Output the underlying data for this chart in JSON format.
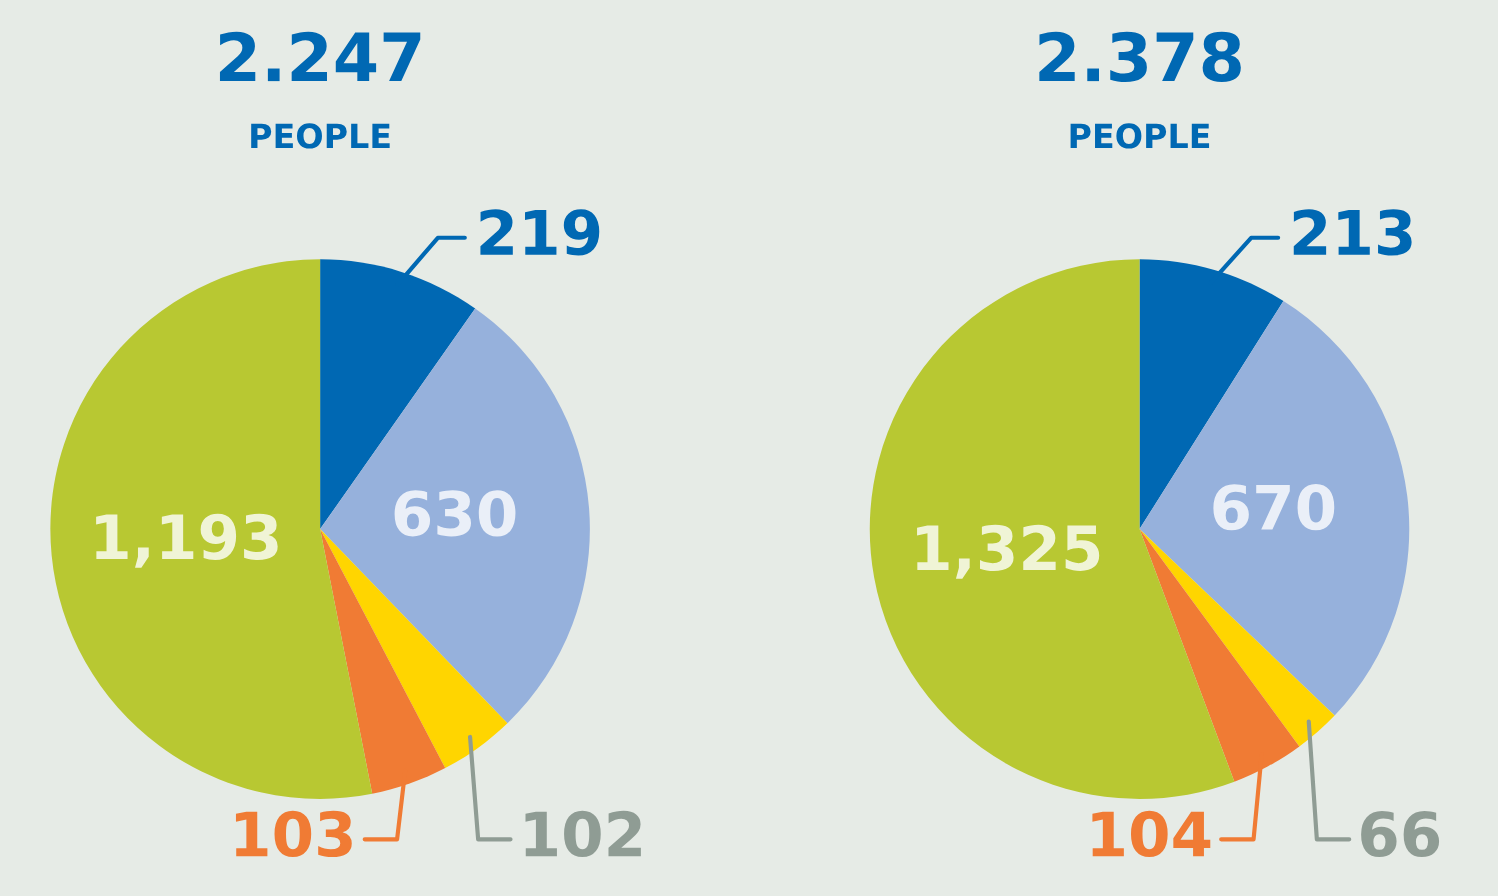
{
  "chart_data": [
    {
      "type": "pie",
      "title": "2.247",
      "subtitle": "PEOPLE",
      "categories": [
        null,
        null,
        null,
        null,
        null
      ],
      "values": [
        219,
        630,
        102,
        103,
        1193
      ],
      "colors": [
        "#0068b3",
        "#96b1dc",
        "#ffd500",
        "#f07b34",
        "#b8c832"
      ],
      "value_labels": [
        "219",
        "630",
        "102",
        "103",
        "1,193"
      ]
    },
    {
      "type": "pie",
      "title": "2.378",
      "subtitle": "PEOPLE",
      "categories": [
        null,
        null,
        null,
        null,
        null
      ],
      "values": [
        213,
        670,
        66,
        104,
        1325
      ],
      "colors": [
        "#0068b3",
        "#96b1dc",
        "#ffd500",
        "#f07b34",
        "#b8c832"
      ],
      "value_labels": [
        "213",
        "670",
        "66",
        "104",
        "1,325"
      ]
    }
  ]
}
